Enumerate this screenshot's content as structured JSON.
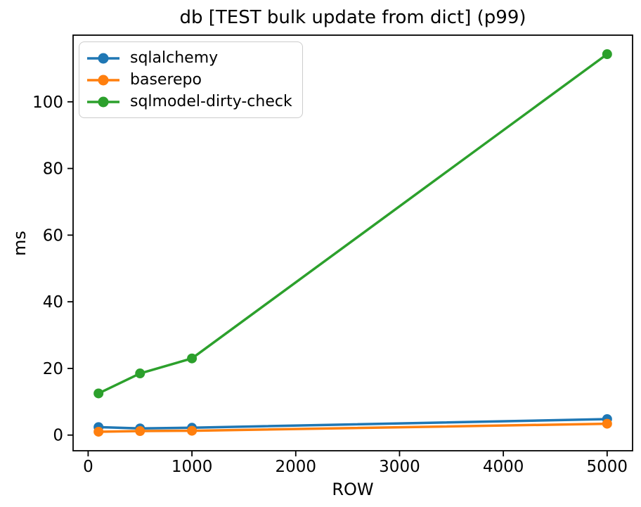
{
  "chart_data": {
    "type": "line",
    "title": "db [TEST bulk update from dict] (p99)",
    "xlabel": "ROW",
    "ylabel": "ms",
    "x": [
      100,
      500,
      1000,
      5000
    ],
    "series": [
      {
        "name": "sqlalchemy",
        "color": "#1f77b4",
        "values": [
          2.4,
          2.0,
          2.2,
          4.8
        ]
      },
      {
        "name": "baserepo",
        "color": "#ff7f0e",
        "values": [
          1.0,
          1.2,
          1.3,
          3.4
        ]
      },
      {
        "name": "sqlmodel-dirty-check",
        "color": "#2ca02c",
        "values": [
          12.5,
          18.5,
          23.0,
          114.3
        ]
      }
    ],
    "xticks": [
      0,
      1000,
      2000,
      3000,
      4000,
      5000
    ],
    "yticks": [
      0,
      20,
      40,
      60,
      80,
      100
    ],
    "xlim": [
      -145,
      5245
    ],
    "ylim": [
      -4.7,
      120
    ],
    "grid": false,
    "legend_position": "upper-left",
    "marker": "circle",
    "axis_color": "#000000"
  }
}
